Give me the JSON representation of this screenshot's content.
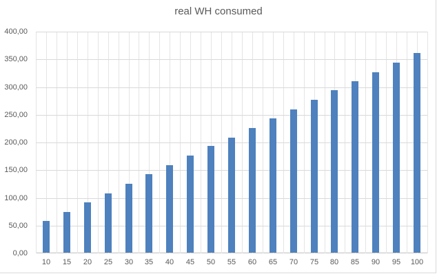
{
  "chart_data": {
    "type": "bar",
    "title": "real WH consumed",
    "categories": [
      "10",
      "15",
      "20",
      "25",
      "30",
      "35",
      "40",
      "45",
      "50",
      "55",
      "60",
      "65",
      "70",
      "75",
      "80",
      "85",
      "90",
      "95",
      "100"
    ],
    "values": [
      57,
      73,
      91,
      107,
      124,
      141,
      158,
      175,
      192,
      208,
      225,
      242,
      259,
      276,
      293,
      309,
      326,
      343,
      360
    ],
    "xlabel": "",
    "ylabel": "",
    "ylim": [
      0,
      400
    ],
    "ytick_step": 50,
    "ytick_labels": [
      "0,00",
      "50,00",
      "100,00",
      "150,00",
      "200,00",
      "250,00",
      "300,00",
      "350,00",
      "400,00"
    ],
    "grid": "horizontal-major and vertical-half-category gridlines on",
    "legend": "none",
    "colors": {
      "bar": "#4e81bd",
      "gridline": "#d9d9d9",
      "axis_line": "#bfbfbf",
      "text": "#595959",
      "background": "#ffffff",
      "chart_border": "#d9d9d9"
    }
  }
}
